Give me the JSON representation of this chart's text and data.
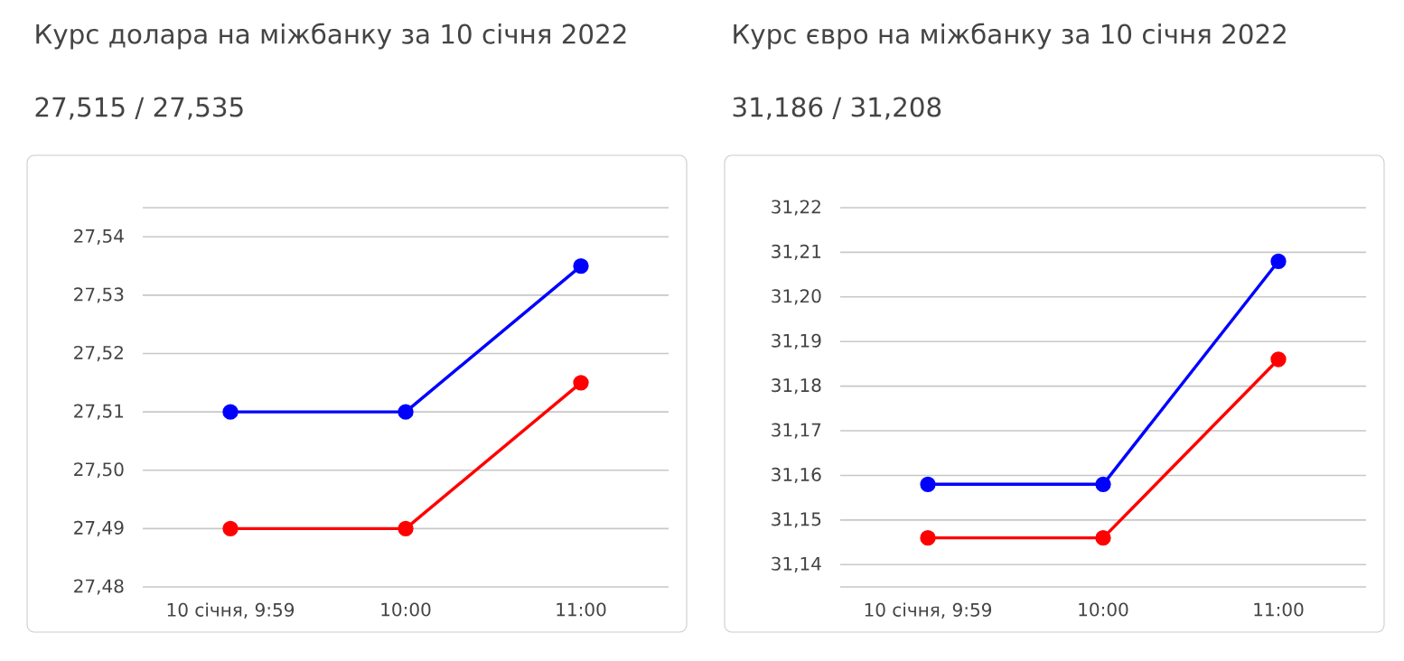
{
  "chart_data": [
    {
      "type": "line",
      "title": "Курс долара на міжбанку за 10 січня 2022",
      "subtitle": "27,515 / 27,535",
      "categories": [
        "10 січня, 9:59",
        "10:00",
        "11:00"
      ],
      "series": [
        {
          "color": "#0000ff",
          "values": [
            27.51,
            27.51,
            27.535
          ]
        },
        {
          "color": "#ff0000",
          "values": [
            27.49,
            27.49,
            27.515
          ]
        }
      ],
      "ylim": [
        27.48,
        27.545
      ],
      "yticks": [
        {
          "value": 27.48,
          "label": "27,48"
        },
        {
          "value": 27.49,
          "label": "27,49"
        },
        {
          "value": 27.5,
          "label": "27,50"
        },
        {
          "value": 27.51,
          "label": "27,51"
        },
        {
          "value": 27.52,
          "label": "27,52"
        },
        {
          "value": 27.53,
          "label": "27,53"
        },
        {
          "value": 27.54,
          "label": "27,54"
        },
        {
          "value": 27.545,
          "label": null
        }
      ],
      "grid": "y",
      "marker": "circle"
    },
    {
      "type": "line",
      "title": "Курс євро на міжбанку за 10 січня 2022",
      "subtitle": "31,186 / 31,208",
      "categories": [
        "10 січня, 9:59",
        "10:00",
        "11:00"
      ],
      "series": [
        {
          "color": "#0000ff",
          "values": [
            31.158,
            31.158,
            31.208
          ]
        },
        {
          "color": "#ff0000",
          "values": [
            31.146,
            31.146,
            31.186
          ]
        }
      ],
      "ylim": [
        31.135,
        31.22
      ],
      "yticks": [
        {
          "value": 31.135,
          "label": null
        },
        {
          "value": 31.14,
          "label": "31,14"
        },
        {
          "value": 31.15,
          "label": "31,15"
        },
        {
          "value": 31.16,
          "label": "31,16"
        },
        {
          "value": 31.17,
          "label": "31,17"
        },
        {
          "value": 31.18,
          "label": "31,18"
        },
        {
          "value": 31.19,
          "label": "31,19"
        },
        {
          "value": 31.2,
          "label": "31,20"
        },
        {
          "value": 31.21,
          "label": "31,21"
        },
        {
          "value": 31.22,
          "label": "31,22"
        }
      ],
      "grid": "y",
      "marker": "circle"
    }
  ]
}
